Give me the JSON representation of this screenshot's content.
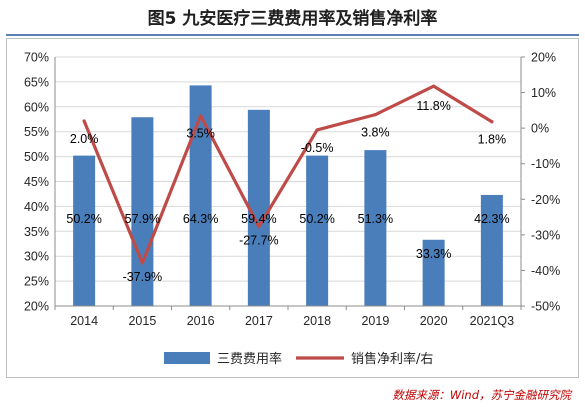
{
  "figure": {
    "title": "图5 九安医疗三费费用率及销售净利率",
    "source": "数据来源：Wind，苏宁金融研究院"
  },
  "colors": {
    "bar": "#4a7ebb",
    "line": "#be4b48",
    "grid": "#d9d9d9",
    "title_rule": "#5b7fb3",
    "source": "#c00000"
  },
  "chart_data": {
    "type": "bar",
    "categories": [
      "2014",
      "2015",
      "2016",
      "2017",
      "2018",
      "2019",
      "2020",
      "2021Q3"
    ],
    "series": [
      {
        "name": "三费费用率",
        "type": "bar",
        "axis": "left",
        "values": [
          50.2,
          57.9,
          64.3,
          59.4,
          50.2,
          51.3,
          33.3,
          42.3
        ],
        "labels": [
          "50.2%",
          "57.9%",
          "64.3%",
          "59.4%",
          "50.2%",
          "51.3%",
          "33.3%",
          "42.3%"
        ]
      },
      {
        "name": "销售净利率/右",
        "type": "line",
        "axis": "right",
        "values": [
          2.0,
          -37.9,
          3.5,
          -27.7,
          -0.5,
          3.8,
          11.8,
          1.8
        ],
        "labels": [
          "2.0%",
          "-37.9%",
          "3.5%",
          "-27.7%",
          "-0.5%",
          "3.8%",
          "11.8%",
          "1.8%"
        ]
      }
    ],
    "y_left": {
      "min": 20,
      "max": 70,
      "step": 5,
      "tick_labels": [
        "20%",
        "25%",
        "30%",
        "35%",
        "40%",
        "45%",
        "50%",
        "55%",
        "60%",
        "65%",
        "70%"
      ]
    },
    "y_right": {
      "min": -50,
      "max": 20,
      "step": 10,
      "tick_labels": [
        "-50%",
        "-40%",
        "-30%",
        "-20%",
        "-10%",
        "0%",
        "10%",
        "20%"
      ]
    },
    "grid": true,
    "legend_position": "bottom"
  }
}
